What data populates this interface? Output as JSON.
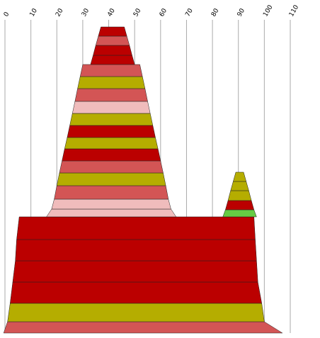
{
  "chart_data": {
    "type": "area",
    "title": "",
    "xlabel": "",
    "ylabel": "",
    "xlim": [
      0,
      110
    ],
    "x_ticks": [
      "0",
      "10",
      "20",
      "30",
      "40",
      "50",
      "60",
      "70",
      "80",
      "90",
      "100",
      "110"
    ],
    "grid": "vertical",
    "legend": "none",
    "palette": {
      "dark_red": "#bb0000",
      "red": "#d35555",
      "pink": "#f0bcbc",
      "olive": "#b5ad00",
      "green": "#66cc44"
    },
    "shapes": [
      {
        "name": "",
        "layers": [
          {
            "color": "red",
            "top": [
              1,
              100
            ],
            "bottom": [
              -0.5,
              107
            ]
          },
          {
            "color": "olive",
            "top": [
              2,
              99
            ],
            "bottom": [
              1,
              100
            ]
          },
          {
            "color": "dark_red",
            "top": [
              3,
              97.5
            ],
            "bottom": [
              2,
              99
            ]
          },
          {
            "color": "dark_red",
            "top": [
              4,
              97
            ],
            "bottom": [
              3,
              97.5
            ]
          },
          {
            "color": "dark_red",
            "top": [
              4.5,
              96.5
            ],
            "bottom": [
              4,
              97
            ]
          },
          {
            "color": "dark_red",
            "top": [
              5.5,
              96
            ],
            "bottom": [
              4.5,
              96.5
            ]
          }
        ]
      },
      {
        "name": "",
        "layers": [
          {
            "color": "pink",
            "top": [
              18,
              64
            ],
            "bottom": [
              16,
              66
            ]
          },
          {
            "color": "pink",
            "top": [
              19,
              63
            ],
            "bottom": [
              18,
              64
            ]
          },
          {
            "color": "red",
            "top": [
              20,
              62
            ],
            "bottom": [
              19,
              63
            ]
          },
          {
            "color": "olive",
            "top": [
              21,
              61
            ],
            "bottom": [
              20,
              62
            ]
          },
          {
            "color": "red",
            "top": [
              22,
              60
            ],
            "bottom": [
              21,
              61
            ]
          },
          {
            "color": "dark_red",
            "top": [
              23,
              59
            ],
            "bottom": [
              22,
              60
            ]
          },
          {
            "color": "olive",
            "top": [
              24,
              58
            ],
            "bottom": [
              23,
              59
            ]
          },
          {
            "color": "dark_red",
            "top": [
              25,
              57
            ],
            "bottom": [
              24,
              58
            ]
          },
          {
            "color": "olive",
            "top": [
              26,
              56
            ],
            "bottom": [
              25,
              57
            ]
          },
          {
            "color": "pink",
            "top": [
              27,
              55
            ],
            "bottom": [
              26,
              56
            ]
          },
          {
            "color": "red",
            "top": [
              28,
              54
            ],
            "bottom": [
              27,
              55
            ]
          },
          {
            "color": "olive",
            "top": [
              29,
              53
            ],
            "bottom": [
              28,
              54
            ]
          },
          {
            "color": "red",
            "top": [
              30,
              52
            ],
            "bottom": [
              29,
              53
            ]
          },
          {
            "color": "dark_red",
            "top": [
              34,
              49
            ],
            "bottom": [
              33,
              50
            ]
          },
          {
            "color": "dark_red",
            "top": [
              35,
              48
            ],
            "bottom": [
              34,
              49
            ]
          },
          {
            "color": "red",
            "top": [
              36,
              47
            ],
            "bottom": [
              35,
              48
            ]
          },
          {
            "color": "dark_red",
            "top": [
              37,
              46
            ],
            "bottom": [
              36,
              47
            ]
          }
        ]
      },
      {
        "name": "",
        "layers": [
          {
            "color": "green",
            "top": [
              85,
              96
            ],
            "bottom": [
              84,
              97
            ]
          },
          {
            "color": "dark_red",
            "top": [
              86,
              95
            ],
            "bottom": [
              85,
              96
            ]
          },
          {
            "color": "olive",
            "top": [
              87,
              94
            ],
            "bottom": [
              86,
              95
            ]
          },
          {
            "color": "olive",
            "top": [
              88,
              93
            ],
            "bottom": [
              87,
              94
            ]
          },
          {
            "color": "olive",
            "top": [
              89,
              92
            ],
            "bottom": [
              88,
              93
            ]
          }
        ]
      }
    ]
  }
}
